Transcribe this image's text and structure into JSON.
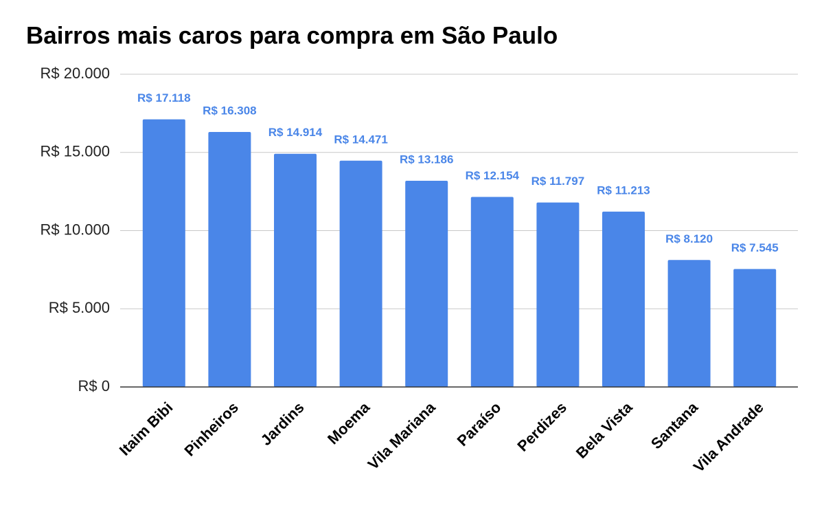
{
  "chart_data": {
    "type": "bar",
    "title": "Bairros mais caros para compra em São Paulo",
    "categories": [
      "Itaim Bibi",
      "Pinheiros",
      "Jardins",
      "Moema",
      "Vila Mariana",
      "Paraíso",
      "Perdizes",
      "Bela Vista",
      "Santana",
      "Vila Andrade"
    ],
    "values": [
      17118,
      16308,
      14914,
      14471,
      13186,
      12154,
      11797,
      11213,
      8120,
      7545
    ],
    "value_labels": [
      "R$ 17.118",
      "R$ 16.308",
      "R$ 14.914",
      "R$ 14.471",
      "R$ 13.186",
      "R$ 12.154",
      "R$ 11.797",
      "R$ 11.213",
      "R$ 8.120",
      "R$ 7.545"
    ],
    "color": "#4a86e8",
    "ylim": [
      0,
      20000
    ],
    "yticks": [
      {
        "value": 0,
        "label": "R$ 0"
      },
      {
        "value": 5000,
        "label": "R$ 5.000"
      },
      {
        "value": 10000,
        "label": "R$ 10.000"
      },
      {
        "value": 15000,
        "label": "R$ 15.000"
      },
      {
        "value": 20000,
        "label": "R$ 20.000"
      }
    ],
    "grid": true
  }
}
